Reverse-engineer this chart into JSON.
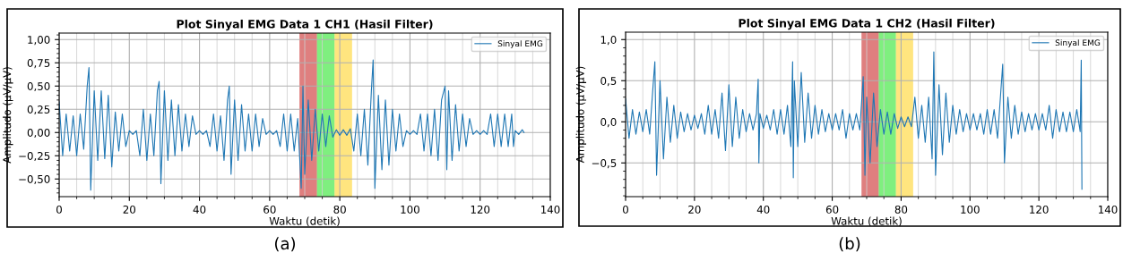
{
  "chart_data": [
    {
      "type": "line",
      "title": "Plot Sinyal EMG Data 1 CH1 (Hasil Filter)",
      "xlabel": "Waktu (detik)",
      "ylabel": "Amplitudo (µV/µV)",
      "xlim": [
        0,
        140
      ],
      "xticks": [
        0,
        20,
        40,
        60,
        80,
        100,
        120,
        140
      ],
      "ylim": [
        -0.69,
        1.07
      ],
      "yticks": [
        {
          "value": -0.5,
          "label": "−0,50"
        },
        {
          "value": -0.25,
          "label": "−0,25"
        },
        {
          "value": 0,
          "label": "0,00"
        },
        {
          "value": 0.25,
          "label": "0,25"
        },
        {
          "value": 0.5,
          "label": "0,50"
        },
        {
          "value": 0.75,
          "label": "0,75"
        },
        {
          "value": 1.0,
          "label": "1,00"
        }
      ],
      "grid": true,
      "legend": "top right",
      "bands": [
        {
          "axis": "x",
          "from": 68.5,
          "to": 73.5,
          "color": "#c00000"
        },
        {
          "axis": "x",
          "from": 73.5,
          "to": 78.5,
          "color": "#00e000"
        },
        {
          "axis": "x",
          "from": 78.5,
          "to": 83.5,
          "color": "#ffcc00"
        }
      ],
      "annotations": [
        "(a)"
      ],
      "series": [
        {
          "name": "Sinyal EMG",
          "color": "#1f77b4",
          "x": [
            0,
            1,
            2,
            3,
            4,
            5,
            6,
            7,
            8,
            8.5,
            9,
            10,
            11,
            12,
            13,
            14,
            15,
            16,
            17,
            18,
            19,
            20,
            21,
            22,
            23,
            24,
            25,
            26,
            27,
            28,
            28.5,
            29,
            30,
            31,
            32,
            33,
            34,
            35,
            36,
            37,
            38,
            39,
            40,
            41,
            42,
            43,
            44,
            45,
            46,
            47,
            48,
            48.5,
            49,
            50,
            51,
            52,
            53,
            54,
            55,
            56,
            57,
            58,
            59,
            60,
            61,
            62,
            63,
            64,
            65,
            66,
            67,
            68,
            69,
            69.5,
            70,
            71,
            72,
            73,
            74,
            75,
            76,
            77,
            78,
            79,
            80,
            81,
            82,
            83,
            84,
            85,
            86,
            87,
            88,
            89,
            89.5,
            90,
            91,
            92,
            93,
            94,
            95,
            96,
            97,
            98,
            99,
            100,
            101,
            102,
            103,
            104,
            105,
            106,
            107,
            108,
            109,
            110,
            110.5,
            111,
            112,
            113,
            114,
            115,
            116,
            117,
            118,
            119,
            120,
            121,
            122,
            123,
            124,
            125,
            126,
            127,
            128,
            129,
            129.5,
            130,
            131,
            132,
            132.5
          ],
          "values": [
            0.33,
            -0.25,
            0.2,
            -0.2,
            0.18,
            -0.25,
            0.2,
            -0.18,
            0.5,
            0.7,
            -0.62,
            0.45,
            -0.3,
            0.45,
            -0.28,
            0.4,
            -0.37,
            0.22,
            -0.2,
            0.2,
            -0.15,
            0.02,
            -0.02,
            0.02,
            -0.25,
            0.25,
            -0.3,
            0.2,
            -0.25,
            0.45,
            0.55,
            -0.55,
            0.45,
            -0.3,
            0.35,
            -0.25,
            0.3,
            -0.2,
            0.2,
            -0.15,
            0.18,
            -0.02,
            0.02,
            -0.02,
            0.02,
            -0.15,
            0.2,
            -0.2,
            0.18,
            -0.3,
            0.35,
            0.5,
            -0.45,
            0.35,
            -0.3,
            0.3,
            -0.2,
            0.2,
            -0.2,
            0.2,
            -0.15,
            0.15,
            -0.02,
            0.02,
            -0.02,
            0.02,
            -0.15,
            0.2,
            -0.2,
            0.2,
            -0.2,
            0.15,
            -0.6,
            0.5,
            -0.45,
            0.35,
            -0.3,
            0.25,
            -0.2,
            0.2,
            -0.15,
            0.18,
            -0.05,
            0.03,
            -0.03,
            0.03,
            -0.03,
            0.04,
            -0.2,
            0.2,
            -0.25,
            0.25,
            -0.35,
            0.45,
            0.78,
            -0.6,
            0.4,
            -0.4,
            0.35,
            -0.35,
            0.25,
            -0.2,
            0.2,
            -0.15,
            0.02,
            -0.02,
            0.02,
            -0.02,
            0.2,
            -0.2,
            0.2,
            -0.25,
            0.25,
            -0.3,
            0.35,
            0.5,
            -0.4,
            0.45,
            -0.3,
            0.3,
            -0.2,
            0.2,
            -0.15,
            0.15,
            -0.02,
            0.02,
            -0.02,
            0.02,
            -0.02,
            0.2,
            -0.15,
            0.2,
            -0.15,
            0.2,
            -0.15,
            0.2,
            -0.15,
            0.02,
            -0.02,
            0.03,
            0.0
          ]
        }
      ]
    },
    {
      "type": "line",
      "title": "Plot Sinyal EMG Data 1 CH2 (Hasil Filter)",
      "xlabel": "Waktu (detik)",
      "ylabel": "Amplitudo (µV/µV)",
      "xlim": [
        0,
        140
      ],
      "xticks": [
        0,
        20,
        40,
        60,
        80,
        100,
        120,
        140
      ],
      "ylim": [
        -0.91,
        1.09
      ],
      "yticks": [
        {
          "value": -0.5,
          "label": "−0,5"
        },
        {
          "value": 0,
          "label": "0,0"
        },
        {
          "value": 0.5,
          "label": "0,5"
        },
        {
          "value": 1.0,
          "label": "1,0"
        }
      ],
      "grid": true,
      "legend": "top right",
      "bands": [
        {
          "axis": "x",
          "from": 68.5,
          "to": 73.5,
          "color": "#c00000"
        },
        {
          "axis": "x",
          "from": 73.5,
          "to": 78.5,
          "color": "#00e000"
        },
        {
          "axis": "x",
          "from": 78.5,
          "to": 83.5,
          "color": "#ffcc00"
        }
      ],
      "annotations": [
        "(b)"
      ],
      "series": [
        {
          "name": "Sinyal EMG",
          "color": "#1f77b4",
          "x": [
            0,
            1,
            2,
            3,
            4,
            5,
            6,
            7,
            8,
            8.5,
            9,
            10,
            11,
            12,
            13,
            14,
            15,
            16,
            17,
            18,
            19,
            20,
            21,
            22,
            23,
            24,
            25,
            26,
            27,
            28,
            29,
            30,
            31,
            32,
            33,
            34,
            35,
            36,
            37,
            38,
            38.5,
            38.7,
            39,
            40,
            41,
            42,
            43,
            44,
            45,
            46,
            47,
            48,
            48.5,
            48.7,
            49,
            50,
            51,
            52,
            53,
            54,
            55,
            56,
            57,
            58,
            59,
            60,
            61,
            62,
            63,
            64,
            65,
            66,
            67,
            68,
            69,
            69.5,
            70,
            71,
            72,
            73,
            74,
            75,
            76,
            77,
            78,
            79,
            80,
            81,
            82,
            83,
            84,
            85,
            86,
            87,
            88,
            89,
            89.5,
            90,
            91,
            92,
            93,
            94,
            95,
            96,
            97,
            98,
            99,
            100,
            101,
            102,
            103,
            104,
            105,
            106,
            107,
            108,
            109,
            109.5,
            110,
            111,
            112,
            113,
            114,
            115,
            116,
            117,
            118,
            119,
            120,
            121,
            122,
            123,
            124,
            125,
            126,
            127,
            128,
            129,
            130,
            131,
            132,
            132.3,
            132.5
          ],
          "values": [
            0.28,
            -0.2,
            0.15,
            -0.15,
            0.12,
            -0.12,
            0.15,
            -0.15,
            0.45,
            0.73,
            -0.65,
            0.5,
            -0.45,
            0.3,
            -0.25,
            0.2,
            -0.2,
            0.12,
            -0.12,
            0.1,
            -0.1,
            0.08,
            -0.08,
            0.1,
            -0.15,
            0.2,
            -0.15,
            0.15,
            -0.2,
            0.35,
            -0.35,
            0.45,
            -0.3,
            0.3,
            -0.2,
            0.15,
            -0.12,
            0.1,
            -0.1,
            0.1,
            0.52,
            -0.5,
            0.1,
            -0.08,
            0.08,
            -0.1,
            0.15,
            -0.15,
            0.15,
            -0.15,
            0.2,
            -0.3,
            0.73,
            -0.68,
            0.5,
            -0.3,
            0.6,
            -0.25,
            0.35,
            -0.2,
            0.2,
            -0.15,
            0.15,
            -0.12,
            0.1,
            -0.1,
            0.1,
            -0.1,
            0.15,
            -0.2,
            0.1,
            -0.1,
            0.1,
            -0.1,
            0.55,
            -0.65,
            0.3,
            -0.5,
            0.35,
            -0.3,
            0.15,
            -0.15,
            0.12,
            -0.15,
            0.1,
            -0.08,
            0.06,
            -0.06,
            0.06,
            -0.06,
            0.3,
            -0.2,
            0.2,
            -0.25,
            0.3,
            -0.45,
            0.85,
            -0.65,
            0.45,
            -0.4,
            0.35,
            -0.25,
            0.2,
            -0.15,
            0.15,
            -0.12,
            0.1,
            -0.1,
            0.1,
            -0.1,
            0.1,
            -0.15,
            0.15,
            -0.15,
            0.15,
            -0.2,
            0.4,
            0.7,
            -0.5,
            0.3,
            -0.2,
            0.2,
            -0.15,
            0.12,
            -0.12,
            0.1,
            -0.1,
            0.1,
            -0.1,
            0.1,
            -0.1,
            0.2,
            -0.2,
            0.15,
            -0.12,
            0.12,
            -0.12,
            0.12,
            -0.12,
            0.15,
            -0.12,
            0.75,
            -0.82
          ]
        }
      ]
    }
  ]
}
